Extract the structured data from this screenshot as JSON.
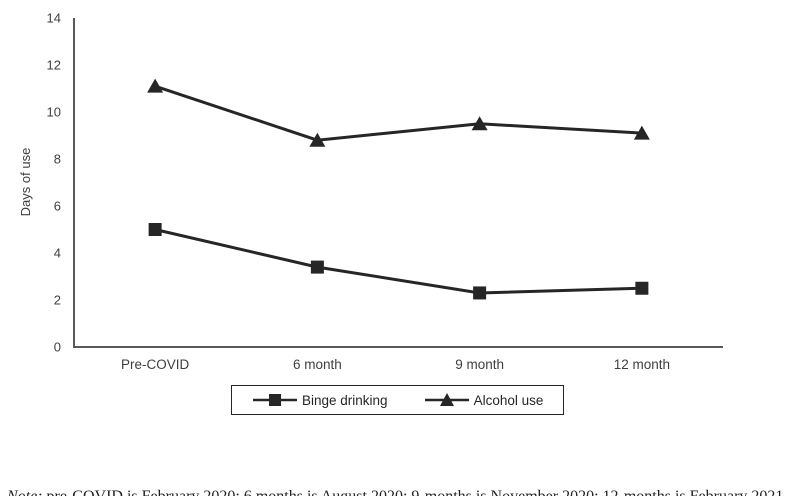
{
  "chart_data": {
    "type": "line",
    "title": "",
    "xlabel": "",
    "ylabel": "Days of use",
    "categories": [
      "Pre-COVID",
      "6 month",
      "9 month",
      "12 month"
    ],
    "series": [
      {
        "name": "Binge drinking",
        "marker": "square",
        "values": [
          5.0,
          3.4,
          2.3,
          2.5
        ]
      },
      {
        "name": "Alcohol use",
        "marker": "triangle",
        "values": [
          11.1,
          8.8,
          9.5,
          9.1
        ]
      }
    ],
    "ylim": [
      0,
      14
    ],
    "yticks": [
      0,
      2,
      4,
      6,
      8,
      10,
      12,
      14
    ],
    "grid": false,
    "legend_position": "bottom",
    "line_color": "#262626",
    "axis_color": "#595959",
    "label_color": "#3f3f3f"
  },
  "note": {
    "prefix": "Note:",
    "text": " pre-COVID is February 2020; 6 months is August 2020; 9-months is November 2020; 12-months is February 2021"
  }
}
